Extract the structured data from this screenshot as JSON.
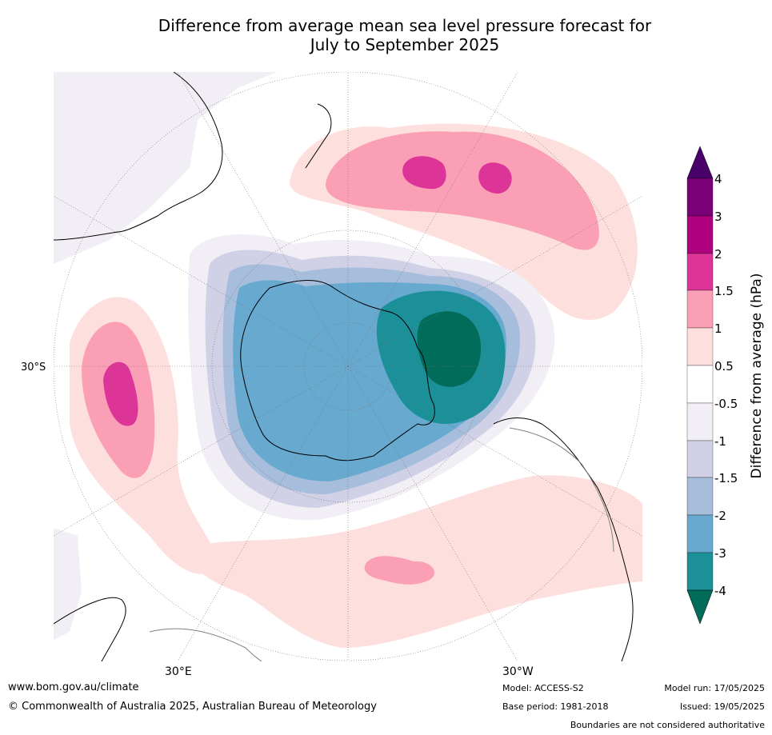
{
  "title_line1": "Difference from average mean sea level pressure forecast for",
  "title_line2": "July to September 2025",
  "map": {
    "lat_labels": [
      "30°S"
    ],
    "lon_labels": [
      "30°E",
      "30°W"
    ],
    "colors": {
      "land_bg": "#ffffff",
      "neg05": "#f2eef5",
      "neg1": "#d0d1e6",
      "neg15": "#a6bddb",
      "neg2": "#67a9cf",
      "neg3": "#1c9099",
      "neg4": "#016c59",
      "pos05": "#fde0dd",
      "pos1": "#fa9fb5",
      "pos15": "#dd3497",
      "pos2": "#ae017e",
      "pos3": "#7a0177",
      "pos4": "#49006a"
    }
  },
  "colorbar": {
    "title": "Difference from average (hPa)",
    "ticks": [
      "4",
      "3",
      "2",
      "1.5",
      "1",
      "0.5",
      "-0.5",
      "-1",
      "-1.5",
      "-2",
      "-3",
      "-4"
    ],
    "colors": [
      "#49006a",
      "#7a0177",
      "#ae017e",
      "#dd3497",
      "#fa9fb5",
      "#fde0dd",
      "#ffffff",
      "#f2eef5",
      "#d0d1e6",
      "#a6bddb",
      "#67a9cf",
      "#1c9099",
      "#016c59"
    ]
  },
  "footer": {
    "url": "www.bom.gov.au/climate",
    "copyright": "© Commonwealth of Australia 2025, Australian Bureau of Meteorology",
    "model": "Model: ACCESS-S2",
    "base_period": "Base period: 1981-2018",
    "model_run": "Model run: 17/05/2025",
    "issued": "Issued: 19/05/2025",
    "disclaimer": "Boundaries are not considered authoritative"
  }
}
